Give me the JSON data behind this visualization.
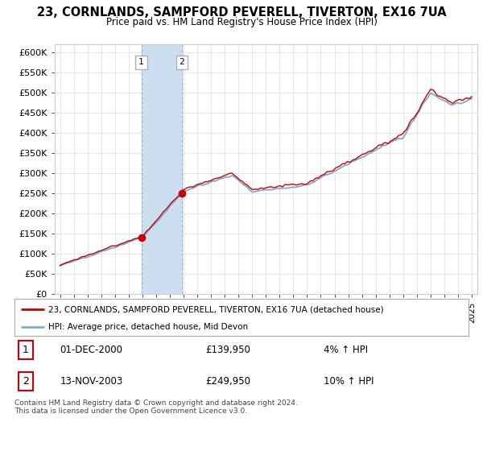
{
  "title": "23, CORNLANDS, SAMPFORD PEVERELL, TIVERTON, EX16 7UA",
  "subtitle": "Price paid vs. HM Land Registry's House Price Index (HPI)",
  "ylim": [
    0,
    620000
  ],
  "yticks": [
    0,
    50000,
    100000,
    150000,
    200000,
    250000,
    300000,
    350000,
    400000,
    450000,
    500000,
    550000,
    600000
  ],
  "ytick_labels": [
    "£0",
    "£50K",
    "£100K",
    "£150K",
    "£200K",
    "£250K",
    "£300K",
    "£350K",
    "£400K",
    "£450K",
    "£500K",
    "£550K",
    "£600K"
  ],
  "hpi_color": "#7aadd4",
  "price_color": "#cc0000",
  "purchase1_year": 2000.92,
  "purchase1_price": 139950,
  "purchase2_year": 2003.87,
  "purchase2_price": 249950,
  "purchase1_label": "1",
  "purchase2_label": "2",
  "legend_line1": "23, CORNLANDS, SAMPFORD PEVERELL, TIVERTON, EX16 7UA (detached house)",
  "legend_line2": "HPI: Average price, detached house, Mid Devon",
  "transaction1_num": "1",
  "transaction1_date": "01-DEC-2000",
  "transaction1_price": "£139,950",
  "transaction1_hpi": "4% ↑ HPI",
  "transaction2_num": "2",
  "transaction2_date": "13-NOV-2003",
  "transaction2_price": "£249,950",
  "transaction2_hpi": "10% ↑ HPI",
  "footnote": "Contains HM Land Registry data © Crown copyright and database right 2024.\nThis data is licensed under the Open Government Licence v3.0.",
  "shading_color": "#ccdff0",
  "bg_color": "#ffffff",
  "grid_color": "#e0e0e0"
}
